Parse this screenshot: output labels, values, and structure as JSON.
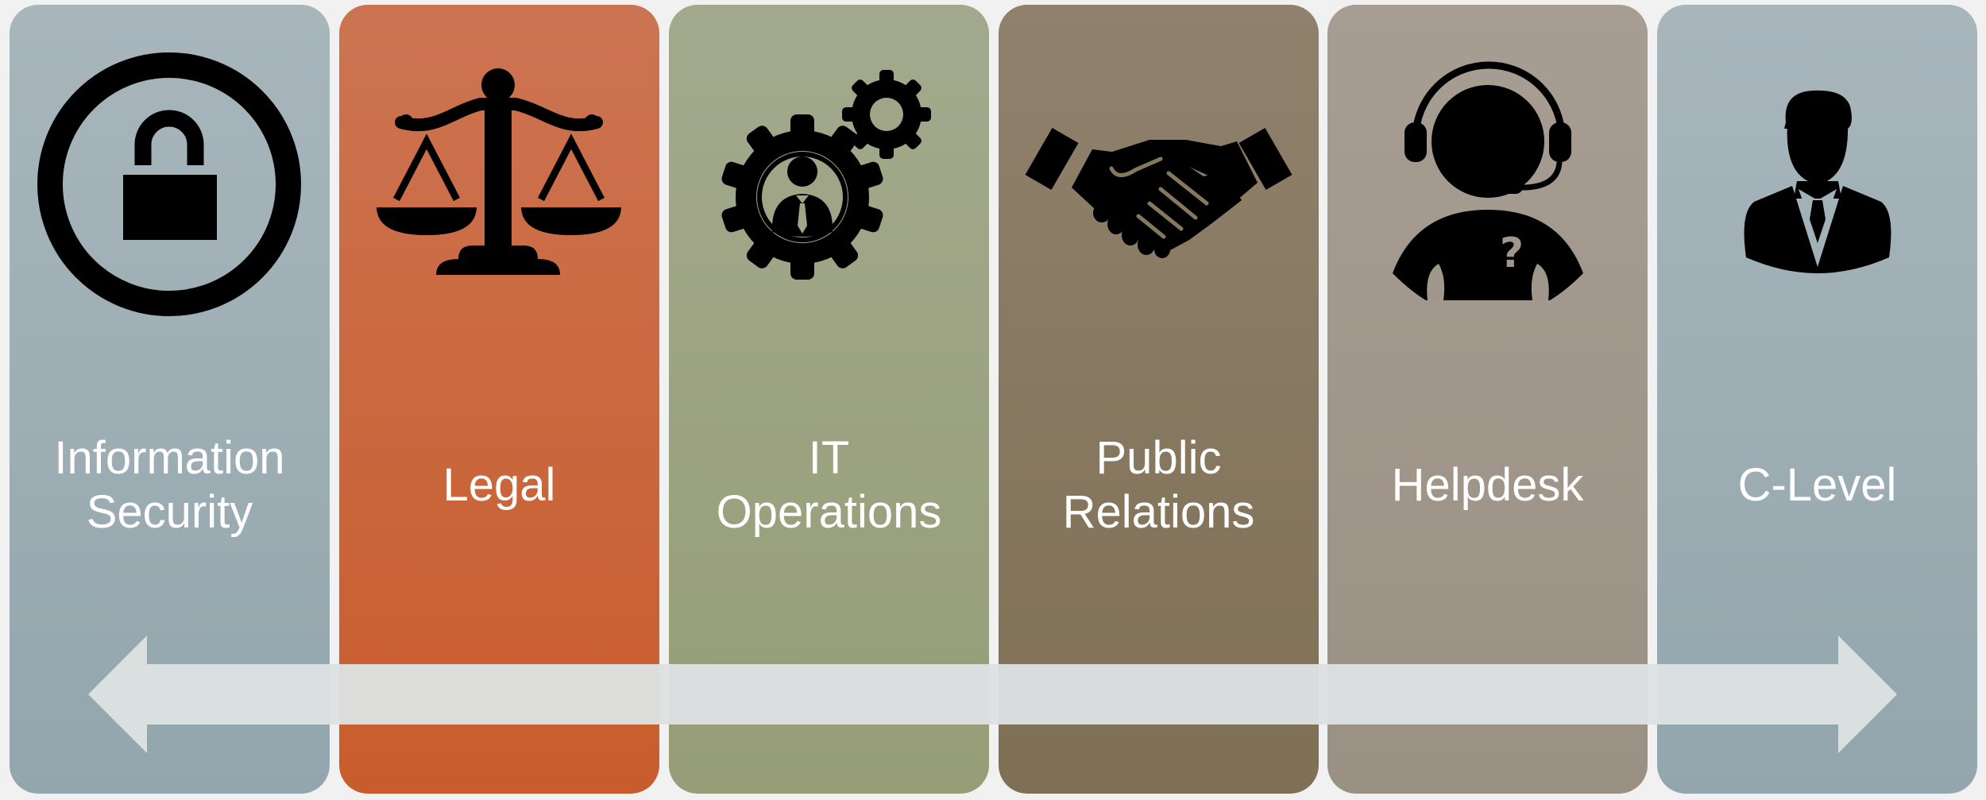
{
  "panels": [
    {
      "icon": "padlock-icon",
      "label": "Information\nSecurity",
      "color": "#a1b1b7"
    },
    {
      "icon": "scales-of-justice-icon",
      "label": "Legal",
      "color": "#c9663a"
    },
    {
      "icon": "gears-person-icon",
      "label": "IT\nOperations",
      "color": "#9ca381"
    },
    {
      "icon": "handshake-icon",
      "label": "Public\nRelations",
      "color": "#877860"
    },
    {
      "icon": "headset-support-icon",
      "label": "Helpdesk",
      "color": "#a0978c"
    },
    {
      "icon": "businessman-icon",
      "label": "C-Level",
      "color": "#a1b1b7"
    }
  ],
  "arrow": {
    "icon": "double-headed-arrow-icon",
    "color": "#dde1e2"
  }
}
